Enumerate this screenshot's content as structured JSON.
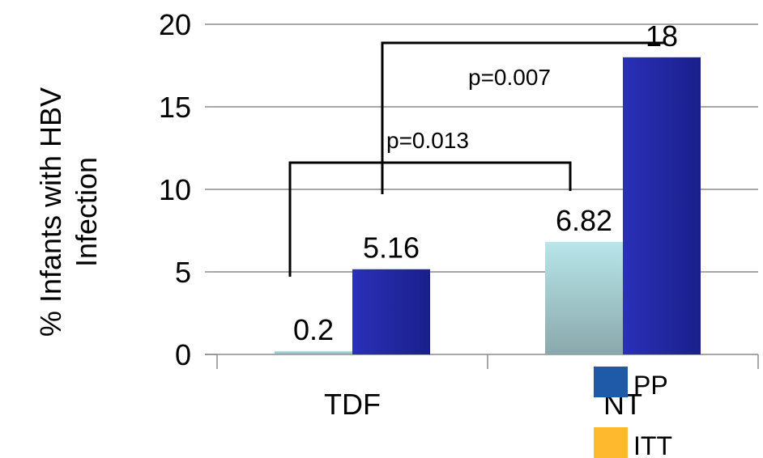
{
  "chart_data": {
    "type": "bar",
    "title": "",
    "xlabel": "",
    "ylabel_lines": [
      "% Infants with HBV",
      "Infection"
    ],
    "ylim": [
      0,
      20
    ],
    "yticks": [
      0,
      5,
      10,
      15,
      20
    ],
    "grid": true,
    "categories": [
      "TDF",
      "NT"
    ],
    "series": [
      {
        "name": "ITT",
        "values": [
          0.2,
          6.82
        ],
        "data_labels": [
          "0.2",
          "6.82"
        ]
      },
      {
        "name": "PP",
        "values": [
          5.16,
          18
        ],
        "data_labels": [
          "5.16",
          "18"
        ]
      }
    ],
    "legend_placement": "bottom-right",
    "legend": [
      {
        "label": "PP",
        "color": "#1f5aa8"
      },
      {
        "label": "ITT",
        "color": "#ffb92e"
      }
    ],
    "annotations": [
      {
        "text": "p=0.013",
        "compares": [
          "TDF ITT",
          "NT ITT"
        ]
      },
      {
        "text": "p=0.007",
        "compares": [
          "TDF PP",
          "NT PP"
        ]
      }
    ]
  }
}
